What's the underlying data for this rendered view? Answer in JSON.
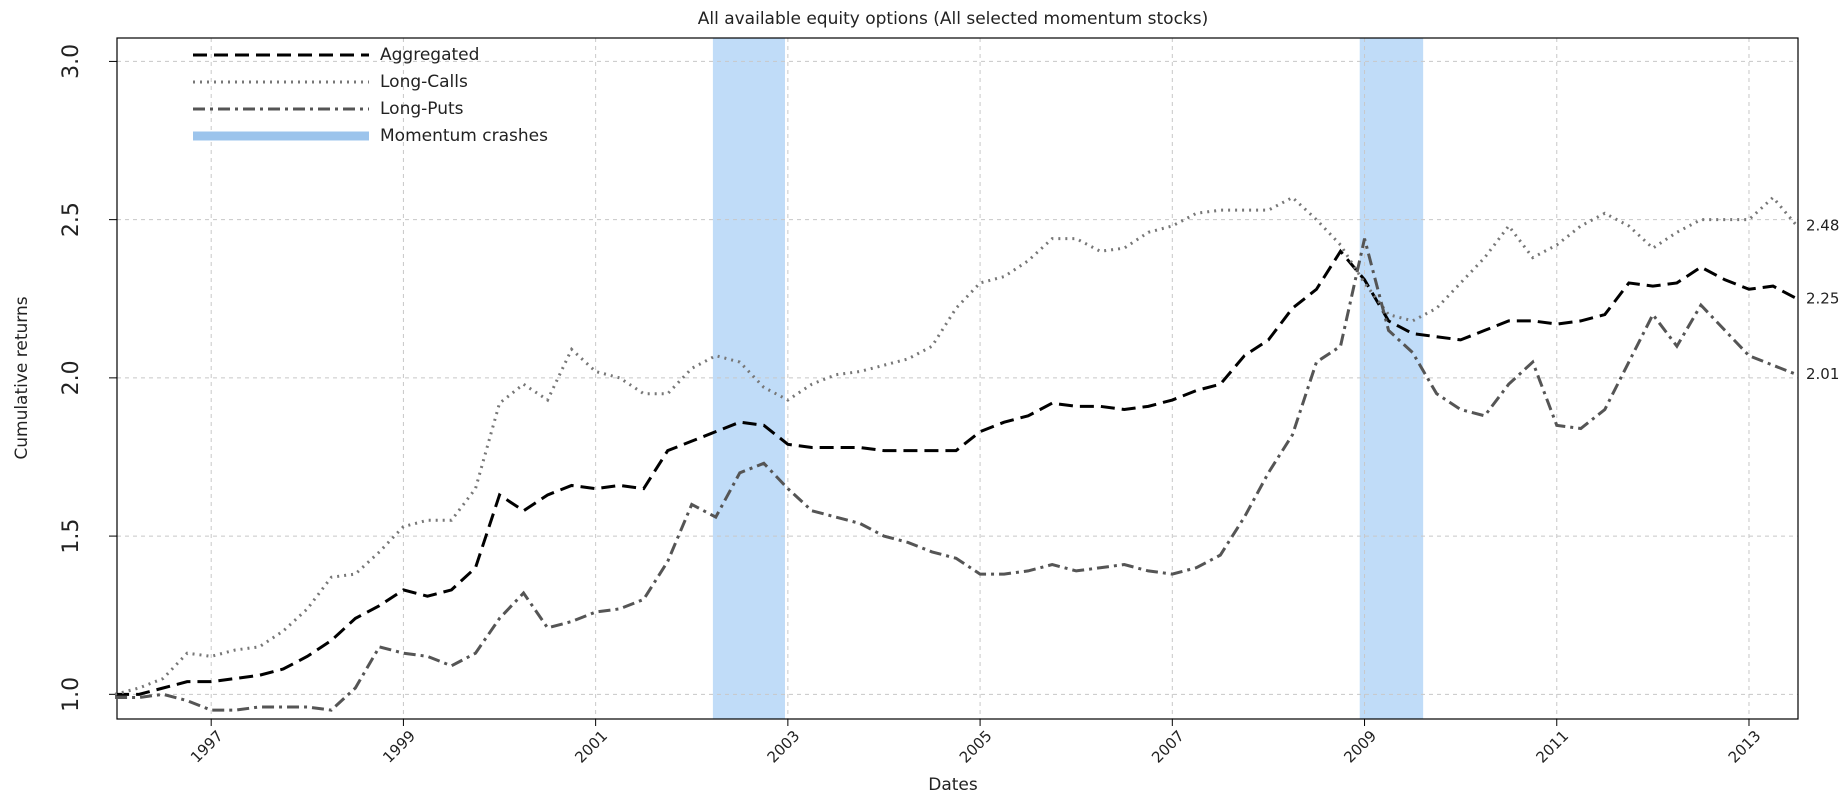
{
  "chart_data": {
    "type": "line",
    "title": "All available equity options (All selected momentum stocks)",
    "x_label": "Dates",
    "y_label": "Cumulative returns",
    "x": [
      1996.0,
      1996.25,
      1996.5,
      1996.75,
      1997.0,
      1997.25,
      1997.5,
      1997.75,
      1998.0,
      1998.25,
      1998.5,
      1998.75,
      1999.0,
      1999.25,
      1999.5,
      1999.75,
      2000.0,
      2000.25,
      2000.5,
      2000.75,
      2001.0,
      2001.25,
      2001.5,
      2001.75,
      2002.0,
      2002.25,
      2002.5,
      2002.75,
      2003.0,
      2003.25,
      2003.5,
      2003.75,
      2004.0,
      2004.25,
      2004.5,
      2004.75,
      2005.0,
      2005.25,
      2005.5,
      2005.75,
      2006.0,
      2006.25,
      2006.5,
      2006.75,
      2007.0,
      2007.25,
      2007.5,
      2007.75,
      2008.0,
      2008.25,
      2008.5,
      2008.75,
      2009.0,
      2009.25,
      2009.5,
      2009.75,
      2010.0,
      2010.25,
      2010.5,
      2010.75,
      2011.0,
      2011.25,
      2011.5,
      2011.75,
      2012.0,
      2012.25,
      2012.5,
      2012.75,
      2013.0,
      2013.25,
      2013.5
    ],
    "series": [
      {
        "name": "Aggregated",
        "color": "#000000",
        "line_style": "dashed",
        "end_label": "2.25",
        "values": [
          1.0,
          1.0,
          1.02,
          1.04,
          1.04,
          1.05,
          1.06,
          1.08,
          1.12,
          1.17,
          1.24,
          1.28,
          1.33,
          1.31,
          1.33,
          1.4,
          1.63,
          1.58,
          1.63,
          1.66,
          1.65,
          1.66,
          1.65,
          1.77,
          1.8,
          1.83,
          1.86,
          1.85,
          1.79,
          1.78,
          1.78,
          1.78,
          1.77,
          1.77,
          1.77,
          1.77,
          1.83,
          1.86,
          1.88,
          1.92,
          1.91,
          1.91,
          1.9,
          1.91,
          1.93,
          1.96,
          1.98,
          2.07,
          2.12,
          2.22,
          2.28,
          2.4,
          2.31,
          2.18,
          2.14,
          2.13,
          2.12,
          2.15,
          2.18,
          2.18,
          2.17,
          2.18,
          2.2,
          2.3,
          2.29,
          2.3,
          2.35,
          2.31,
          2.28,
          2.29,
          2.25
        ]
      },
      {
        "name": "Long-Calls",
        "color": "#777777",
        "line_style": "dotted",
        "end_label": "2.48",
        "values": [
          1.0,
          1.02,
          1.05,
          1.13,
          1.12,
          1.14,
          1.15,
          1.2,
          1.27,
          1.37,
          1.38,
          1.45,
          1.53,
          1.55,
          1.55,
          1.65,
          1.92,
          1.98,
          1.93,
          2.09,
          2.02,
          2.0,
          1.95,
          1.95,
          2.03,
          2.07,
          2.05,
          1.97,
          1.93,
          1.98,
          2.01,
          2.02,
          2.04,
          2.06,
          2.1,
          2.22,
          2.3,
          2.32,
          2.37,
          2.44,
          2.44,
          2.4,
          2.41,
          2.46,
          2.48,
          2.52,
          2.53,
          2.53,
          2.53,
          2.57,
          2.5,
          2.42,
          2.3,
          2.2,
          2.18,
          2.22,
          2.3,
          2.38,
          2.48,
          2.38,
          2.42,
          2.48,
          2.52,
          2.48,
          2.41,
          2.46,
          2.5,
          2.5,
          2.5,
          2.57,
          2.48
        ]
      },
      {
        "name": "Long-Puts",
        "color": "#555555",
        "line_style": "dotdash",
        "end_label": "2.01",
        "values": [
          0.99,
          0.99,
          1.0,
          0.98,
          0.95,
          0.95,
          0.96,
          0.96,
          0.96,
          0.95,
          1.02,
          1.15,
          1.13,
          1.12,
          1.09,
          1.13,
          1.24,
          1.32,
          1.21,
          1.23,
          1.26,
          1.27,
          1.3,
          1.42,
          1.6,
          1.56,
          1.7,
          1.73,
          1.65,
          1.58,
          1.56,
          1.54,
          1.5,
          1.48,
          1.45,
          1.43,
          1.38,
          1.38,
          1.39,
          1.41,
          1.39,
          1.4,
          1.41,
          1.39,
          1.38,
          1.4,
          1.44,
          1.56,
          1.7,
          1.82,
          2.05,
          2.1,
          2.44,
          2.15,
          2.08,
          1.95,
          1.9,
          1.88,
          1.98,
          2.05,
          1.85,
          1.84,
          1.9,
          2.05,
          2.2,
          2.1,
          2.23,
          2.15,
          2.07,
          2.04,
          2.01
        ]
      }
    ],
    "highlight": {
      "name": "Momentum crashes",
      "color": "#c0dcf8",
      "legend_color": "#9cc4ec",
      "ranges": [
        [
          2002.22,
          2002.97
        ],
        [
          2008.95,
          2009.61
        ]
      ]
    },
    "xlim": [
      1996.02,
      2013.51
    ],
    "xticks": [
      1997,
      1999,
      2001,
      2003,
      2005,
      2007,
      2009,
      2011,
      2013
    ],
    "ylim": [
      0.922,
      3.074
    ],
    "yticks": [
      {
        "value": 1.0,
        "label": "1.0"
      },
      1.5,
      {
        "value": 2.0,
        "label": "2.0"
      },
      2.5,
      {
        "value": 3.0,
        "label": "3.0"
      }
    ],
    "grid": true,
    "legend": "top-left"
  }
}
